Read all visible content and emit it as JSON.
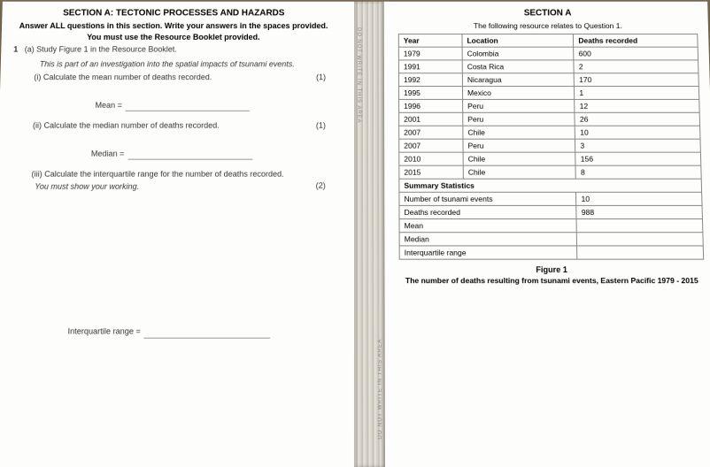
{
  "left": {
    "section_title": "SECTION A: TECTONIC PROCESSES AND HAZARDS",
    "instr1": "Answer ALL questions in this section. Write your answers in the spaces provided.",
    "instr2": "You must use the Resource Booklet provided.",
    "q_num": "1",
    "part_a": "(a)  Study Figure 1 in the Resource Booklet.",
    "part_a_sub": "This is part of an investigation into the spatial impacts of tsunami events.",
    "i_label": "(i)   Calculate the mean number of deaths recorded.",
    "i_marks": "(1)",
    "mean_label": "Mean =",
    "ii_label": "(ii)  Calculate the median number of deaths recorded.",
    "ii_marks": "(1)",
    "median_label": "Median =",
    "iii_label": "(iii) Calculate the interquartile range for the number of deaths recorded.",
    "iii_working": "You must show your working.",
    "iii_marks": "(2)",
    "iqr_label": "Interquartile range ="
  },
  "right": {
    "section_title": "SECTION A",
    "relates": "The following resource relates to Question 1.",
    "headers": {
      "year": "Year",
      "location": "Location",
      "deaths": "Deaths recorded"
    },
    "rows": [
      {
        "year": "1979",
        "location": "Colombia",
        "deaths": "600"
      },
      {
        "year": "1991",
        "location": "Costa Rica",
        "deaths": "2"
      },
      {
        "year": "1992",
        "location": "Nicaragua",
        "deaths": "170"
      },
      {
        "year": "1995",
        "location": "Mexico",
        "deaths": "1"
      },
      {
        "year": "1996",
        "location": "Peru",
        "deaths": "12"
      },
      {
        "year": "2001",
        "location": "Peru",
        "deaths": "26"
      },
      {
        "year": "2007",
        "location": "Chile",
        "deaths": "10"
      },
      {
        "year": "2007",
        "location": "Peru",
        "deaths": "3"
      },
      {
        "year": "2010",
        "location": "Chile",
        "deaths": "156"
      },
      {
        "year": "2015",
        "location": "Chile",
        "deaths": "8"
      }
    ],
    "summary_title": "Summary Statistics",
    "summary": [
      {
        "label": "Number of tsunami events",
        "value": "10"
      },
      {
        "label": "Deaths recorded",
        "value": "988"
      },
      {
        "label": "Mean",
        "value": ""
      },
      {
        "label": "Median",
        "value": ""
      },
      {
        "label": "Interquartile range",
        "value": ""
      }
    ],
    "figure_label": "Figure 1",
    "figure_caption": "The number of deaths resulting from tsunami events, Eastern Pacific 1979 - 2015"
  },
  "style": {
    "page_bg": "#fdfdfb",
    "text_color": "#333333",
    "border_color": "#888888",
    "desk_bg": "#7a6a52"
  }
}
